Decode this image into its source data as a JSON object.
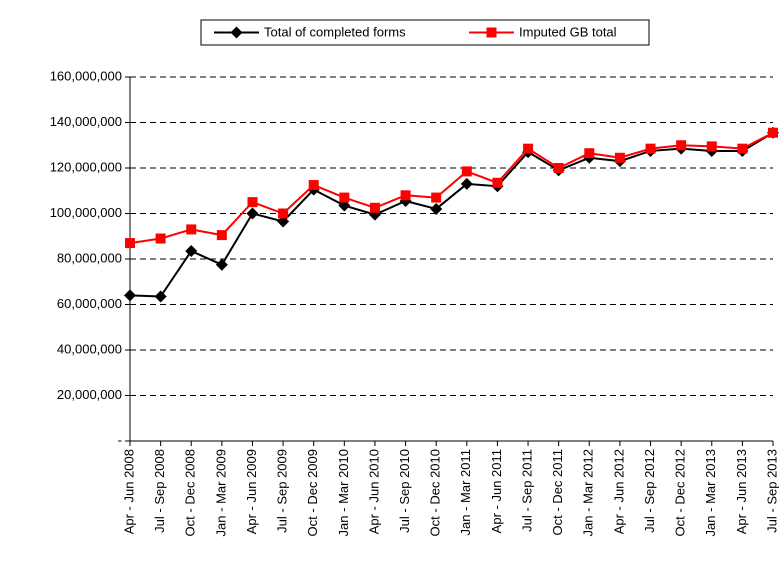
{
  "chart_data": {
    "type": "line",
    "categories": [
      "Apr - Jun 2008",
      "Jul - Sep 2008",
      "Oct - Dec 2008",
      "Jan - Mar 2009",
      "Apr - Jun 2009",
      "Jul - Sep 2009",
      "Oct - Dec 2009",
      "Jan - Mar 2010",
      "Apr - Jun 2010",
      "Jul - Sep 2010",
      "Oct - Dec 2010",
      "Jan - Mar 2011",
      "Apr - Jun 2011",
      "Jul - Sep 2011",
      "Oct - Dec 2011",
      "Jan - Mar 2012",
      "Apr - Jun 2012",
      "Jul - Sep 2012",
      "Oct - Dec 2012",
      "Jan - Mar 2013",
      "Apr - Jun 2013",
      "Jul - Sep 2013"
    ],
    "series": [
      {
        "name": "Total of completed forms",
        "color": "#000000",
        "marker": "diamond",
        "values": [
          64000000,
          63500000,
          83500000,
          77500000,
          100000000,
          96500000,
          110500000,
          103500000,
          99500000,
          105500000,
          102000000,
          113000000,
          112000000,
          127000000,
          119000000,
          124500000,
          123000000,
          127500000,
          128500000,
          127500000,
          127500000,
          135500000
        ]
      },
      {
        "name": "Imputed GB total",
        "color": "#ff0000",
        "marker": "square",
        "values": [
          87000000,
          89000000,
          93000000,
          90500000,
          105000000,
          100000000,
          112500000,
          107000000,
          102500000,
          108000000,
          107000000,
          118500000,
          113500000,
          128500000,
          120000000,
          126500000,
          124500000,
          128500000,
          130000000,
          129500000,
          128500000,
          135500000
        ]
      }
    ],
    "ylim": [
      0,
      160000000
    ],
    "yticks": [
      {
        "value": 0,
        "label": "-"
      },
      {
        "value": 20000000,
        "label": "20,000,000"
      },
      {
        "value": 40000000,
        "label": "40,000,000"
      },
      {
        "value": 60000000,
        "label": "60,000,000"
      },
      {
        "value": 80000000,
        "label": "80,000,000"
      },
      {
        "value": 100000000,
        "label": "100,000,000"
      },
      {
        "value": 120000000,
        "label": "120,000,000"
      },
      {
        "value": 140000000,
        "label": "140,000,000"
      },
      {
        "value": 160000000,
        "label": "160,000,000"
      }
    ],
    "grid": true,
    "legend": "top"
  }
}
